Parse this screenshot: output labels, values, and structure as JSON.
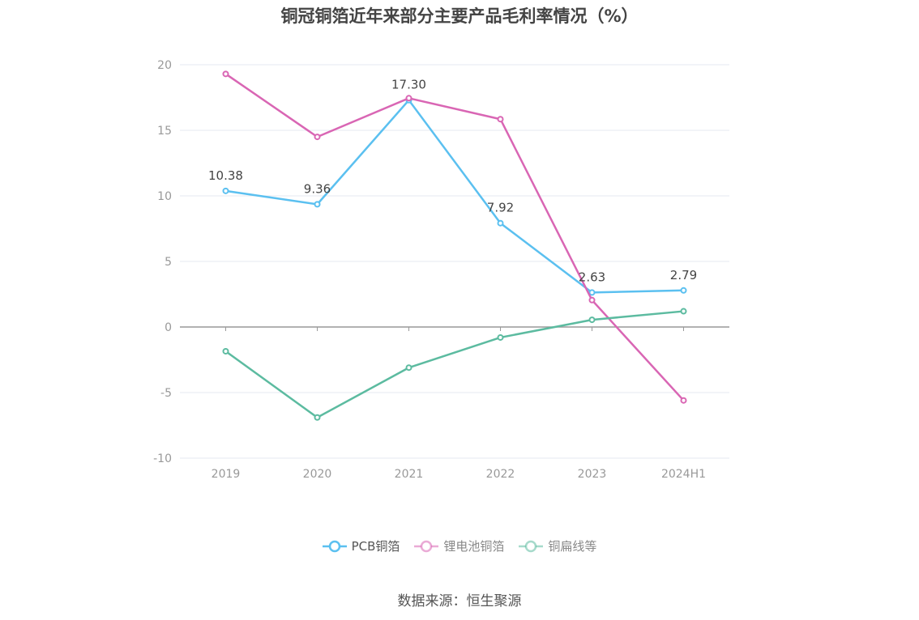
{
  "title": "铜冠铜箔近年来部分主要产品毛利率情况（%）",
  "source": "数据来源：恒生聚源",
  "chart_data": {
    "type": "line",
    "title": "铜冠铜箔近年来部分主要产品毛利率情况（%）",
    "xlabel": "",
    "ylabel": "",
    "categories": [
      "2019",
      "2020",
      "2021",
      "2022",
      "2023",
      "2024H1"
    ],
    "ylim": [
      -10,
      20
    ],
    "yticks": [
      -10,
      -5,
      0,
      5,
      10,
      15,
      20
    ],
    "grid": true,
    "legend_position": "bottom",
    "series": [
      {
        "name": "PCB铜箔",
        "color": "#5bc0f0",
        "values": [
          10.38,
          9.36,
          17.3,
          7.92,
          2.63,
          2.79
        ],
        "labels": [
          "10.38",
          "9.36",
          "17.30",
          "7.92",
          "2.63",
          "2.79"
        ]
      },
      {
        "name": "锂电池铜箔",
        "color": "#d966b4",
        "values": [
          19.3,
          14.5,
          17.45,
          15.85,
          2.05,
          -5.6
        ]
      },
      {
        "name": "铜扁线等",
        "color": "#5cbba0",
        "values": [
          -1.85,
          -6.9,
          -3.1,
          -0.8,
          0.55,
          1.2
        ]
      }
    ]
  }
}
